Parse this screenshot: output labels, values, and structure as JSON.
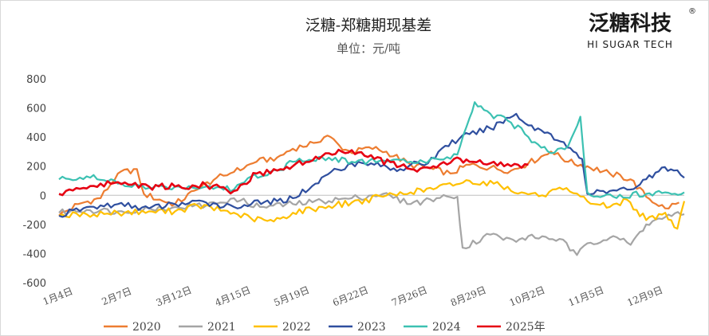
{
  "chart_data": {
    "type": "line",
    "title": "泛糖-郑糖期现基差",
    "subtitle": "单位：元/吨",
    "xlabel": "",
    "ylabel": "",
    "ylim": [
      -600,
      800
    ],
    "yticks": [
      "800",
      "600",
      "400",
      "200",
      "0",
      "-200",
      "-400",
      "-600"
    ],
    "xticks": [
      "1月4日",
      "2月7日",
      "3月12日",
      "4月15日",
      "5月19日",
      "6月22日",
      "7月26日",
      "8月29日",
      "10月2日",
      "11月5日",
      "12月9日"
    ],
    "xrange": [
      "1月4日",
      "12月31日"
    ],
    "x_day_of_year": [
      4,
      38,
      71,
      105,
      139,
      173,
      207,
      241,
      275,
      309,
      343
    ],
    "grid": false,
    "legend": "bottom",
    "series": [
      {
        "name": "2020",
        "color": "#ED7D31",
        "points": [
          [
            "1月4日",
            -140
          ],
          [
            "1月15日",
            -60
          ],
          [
            "1月28日",
            -20
          ],
          [
            "2月7日",
            150
          ],
          [
            "2月18日",
            180
          ],
          [
            "2月22日",
            10
          ],
          [
            "3月5日",
            -40
          ],
          [
            "3月12日",
            -60
          ],
          [
            "3月25日",
            40
          ],
          [
            "4月5日",
            120
          ],
          [
            "4月15日",
            160
          ],
          [
            "4月28日",
            230
          ],
          [
            "5月10日",
            260
          ],
          [
            "5月19日",
            320
          ],
          [
            "5月31日",
            360
          ],
          [
            "6月8日",
            410
          ],
          [
            "6月15日",
            340
          ],
          [
            "6月22日",
            290
          ],
          [
            "7月2日",
            330
          ],
          [
            "7月12日",
            300
          ],
          [
            "7月26日",
            210
          ],
          [
            "8月8日",
            180
          ],
          [
            "8月18日",
            150
          ],
          [
            "8月29日",
            210
          ],
          [
            "9月10日",
            190
          ],
          [
            "9月22日",
            170
          ],
          [
            "10月2日",
            220
          ],
          [
            "10月15日",
            300
          ],
          [
            "10月25日",
            230
          ],
          [
            "11月5日",
            200
          ],
          [
            "11月18日",
            150
          ],
          [
            "11月30日",
            110
          ],
          [
            "12月9日",
            -10
          ],
          [
            "12月20日",
            -90
          ],
          [
            "12月28日",
            -50
          ]
        ]
      },
      {
        "name": "2021",
        "color": "#A5A5A5",
        "points": [
          [
            "1月4日",
            -120
          ],
          [
            "1月20日",
            -100
          ],
          [
            "2月7日",
            -110
          ],
          [
            "2月25日",
            -90
          ],
          [
            "3月12日",
            -80
          ],
          [
            "3月30日",
            -70
          ],
          [
            "4月15日",
            -20
          ],
          [
            "4月30日",
            -80
          ],
          [
            "5月19日",
            -60
          ],
          [
            "6月5日",
            -40
          ],
          [
            "6月22日",
            -20
          ],
          [
            "7月10日",
            10
          ],
          [
            "7月26日",
            -60
          ],
          [
            "8月10日",
            -20
          ],
          [
            "8月22日",
            -10
          ],
          [
            "8月25日",
            -360
          ],
          [
            "9月10日",
            -270
          ],
          [
            "9月25日",
            -320
          ],
          [
            "10月2日",
            -280
          ],
          [
            "10月20日",
            -300
          ],
          [
            "10月30日",
            -410
          ],
          [
            "11月5日",
            -330
          ],
          [
            "11月20日",
            -280
          ],
          [
            "11月30日",
            -340
          ],
          [
            "12月9日",
            -200
          ],
          [
            "12月20日",
            -150
          ],
          [
            "12月31日",
            -130
          ]
        ]
      },
      {
        "name": "2022",
        "color": "#FFC000",
        "points": [
          [
            "1月4日",
            -140
          ],
          [
            "1月20日",
            -130
          ],
          [
            "2月7日",
            -120
          ],
          [
            "2月25日",
            -110
          ],
          [
            "3月12日",
            -110
          ],
          [
            "3月25日",
            -70
          ],
          [
            "4月15日",
            -120
          ],
          [
            "4月25日",
            -160
          ],
          [
            "5月8日",
            -180
          ],
          [
            "5月19日",
            -120
          ],
          [
            "6月5日",
            -80
          ],
          [
            "6月22日",
            -50
          ],
          [
            "7月10日",
            -10
          ],
          [
            "7月26日",
            20
          ],
          [
            "8月10日",
            50
          ],
          [
            "8月29日",
            100
          ],
          [
            "9月12日",
            80
          ],
          [
            "9月28日",
            20
          ],
          [
            "10月10日",
            0
          ],
          [
            "10月22日",
            40
          ],
          [
            "11月5日",
            -40
          ],
          [
            "11月18日",
            -80
          ],
          [
            "11月28日",
            -30
          ],
          [
            "12月9日",
            -170
          ],
          [
            "12月20日",
            -120
          ],
          [
            "12月27日",
            -230
          ],
          [
            "12月31日",
            -40
          ]
        ]
      },
      {
        "name": "2023",
        "color": "#2F4F9F",
        "points": [
          [
            "1月4日",
            -140
          ],
          [
            "1月18日",
            -90
          ],
          [
            "2月7日",
            -60
          ],
          [
            "2月25日",
            -90
          ],
          [
            "3月12日",
            -60
          ],
          [
            "3月30日",
            -50
          ],
          [
            "4月15日",
            -80
          ],
          [
            "4月25日",
            -60
          ],
          [
            "5月10日",
            -40
          ],
          [
            "5月19日",
            -20
          ],
          [
            "6月1日",
            80
          ],
          [
            "6月10日",
            160
          ],
          [
            "6月22日",
            220
          ],
          [
            "7月5日",
            210
          ],
          [
            "7月20日",
            180
          ],
          [
            "7月26日",
            210
          ],
          [
            "8月5日",
            220
          ],
          [
            "8月15日",
            340
          ],
          [
            "8月29日",
            420
          ],
          [
            "9月10日",
            460
          ],
          [
            "9月25日",
            560
          ],
          [
            "10月2日",
            480
          ],
          [
            "10月15日",
            420
          ],
          [
            "10月28日",
            300
          ],
          [
            "11月2日",
            250
          ],
          [
            "11月5日",
            10
          ],
          [
            "11月18日",
            30
          ],
          [
            "11月30日",
            40
          ],
          [
            "12月9日",
            110
          ],
          [
            "12月18日",
            190
          ],
          [
            "12月25日",
            170
          ],
          [
            "12月31日",
            120
          ]
        ]
      },
      {
        "name": "2024",
        "color": "#3CC1B2",
        "points": [
          [
            "1月4日",
            110
          ],
          [
            "1月20日",
            130
          ],
          [
            "2月7日",
            80
          ],
          [
            "2月25日",
            50
          ],
          [
            "3月12日",
            60
          ],
          [
            "3月30日",
            60
          ],
          [
            "4月15日",
            40
          ],
          [
            "4月25日",
            130
          ],
          [
            "5月10日",
            170
          ],
          [
            "5月19日",
            230
          ],
          [
            "6月5日",
            260
          ],
          [
            "6月22日",
            230
          ],
          [
            "7月10日",
            240
          ],
          [
            "7月26日",
            230
          ],
          [
            "8月10日",
            250
          ],
          [
            "8月22日",
            280
          ],
          [
            "8月29日",
            530
          ],
          [
            "9月1日",
            640
          ],
          [
            "9月10日",
            560
          ],
          [
            "9月22日",
            500
          ],
          [
            "10月2日",
            400
          ],
          [
            "10月15日",
            290
          ],
          [
            "10月25日",
            340
          ],
          [
            "11月1日",
            540
          ],
          [
            "11月5日",
            20
          ],
          [
            "11月20日",
            -10
          ],
          [
            "12月9日",
            10
          ],
          [
            "12月20日",
            20
          ],
          [
            "12月31日",
            20
          ]
        ]
      },
      {
        "name": "2025年",
        "color": "#E60012",
        "points": [
          [
            "1月4日",
            10
          ],
          [
            "1月18日",
            50
          ],
          [
            "2月7日",
            90
          ],
          [
            "2月25日",
            60
          ],
          [
            "3月12日",
            60
          ],
          [
            "3月30日",
            70
          ],
          [
            "4月15日",
            30
          ],
          [
            "4月28日",
            150
          ],
          [
            "5月10日",
            170
          ],
          [
            "5月19日",
            200
          ],
          [
            "6月5日",
            270
          ],
          [
            "6月22日",
            310
          ],
          [
            "7月5日",
            250
          ],
          [
            "7月20日",
            200
          ],
          [
            "7月26日",
            180
          ],
          [
            "8月10日",
            190
          ],
          [
            "8月20日",
            250
          ],
          [
            "8月29日",
            230
          ],
          [
            "9月10日",
            220
          ],
          [
            "9月22日",
            200
          ],
          [
            "10月2日",
            210
          ]
        ]
      }
    ]
  },
  "logo": {
    "main": "泛糖科技",
    "sub": "HI SUGAR TECH",
    "reg": "®"
  }
}
